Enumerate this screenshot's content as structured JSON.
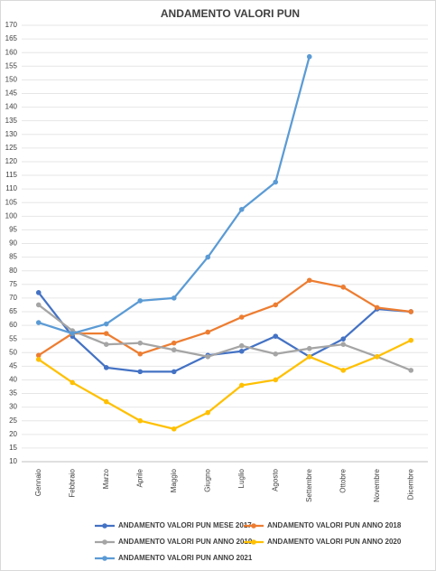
{
  "chart_data": {
    "type": "line",
    "title": "ANDAMENTO VALORI PUN",
    "categories": [
      "Gennaio",
      "Febbraio",
      "Marzo",
      "Aprile",
      "Maggio",
      "Giugno",
      "Luglio",
      "Agosto",
      "Settembre",
      "Ottobre",
      "Novembre",
      "Dicembre"
    ],
    "series": [
      {
        "name": "ANDAMENTO VALORI PUN MESE 2017",
        "color": "#4472c4",
        "values": [
          72,
          56,
          44.5,
          43,
          43,
          49,
          50.5,
          56,
          48.5,
          55,
          66,
          65
        ]
      },
      {
        "name": "ANDAMENTO VALORI PUN ANNO 2018",
        "color": "#ed7d31",
        "values": [
          49,
          57,
          57,
          49.5,
          53.5,
          57.5,
          63,
          67.5,
          76.5,
          74,
          66.5,
          65
        ]
      },
      {
        "name": "ANDAMENTO VALORI PUN ANNO 2019",
        "color": "#a5a5a5",
        "values": [
          67.5,
          58,
          53,
          53.5,
          51,
          48.5,
          52.5,
          49.5,
          51.5,
          53,
          48.5,
          43.5
        ]
      },
      {
        "name": "ANDAMENTO VALORI PUN ANNO 2020",
        "color": "#ffc000",
        "values": [
          47.5,
          39,
          32,
          25,
          22,
          28,
          38,
          40,
          48.5,
          43.5,
          48.5,
          54.5
        ]
      },
      {
        "name": "ANDAMENTO VALORI PUN ANNO 2021",
        "color": "#5b9bd5",
        "values": [
          61,
          57,
          60.5,
          69,
          70,
          85,
          102.5,
          112.5,
          158.5,
          null,
          null,
          null
        ]
      }
    ],
    "ylim": [
      10,
      170
    ],
    "yticks": [
      10,
      15,
      20,
      25,
      30,
      35,
      40,
      45,
      50,
      55,
      60,
      65,
      70,
      75,
      80,
      85,
      90,
      95,
      100,
      105,
      110,
      115,
      120,
      125,
      130,
      135,
      140,
      145,
      150,
      155,
      160,
      165,
      170
    ],
    "grid": true
  }
}
